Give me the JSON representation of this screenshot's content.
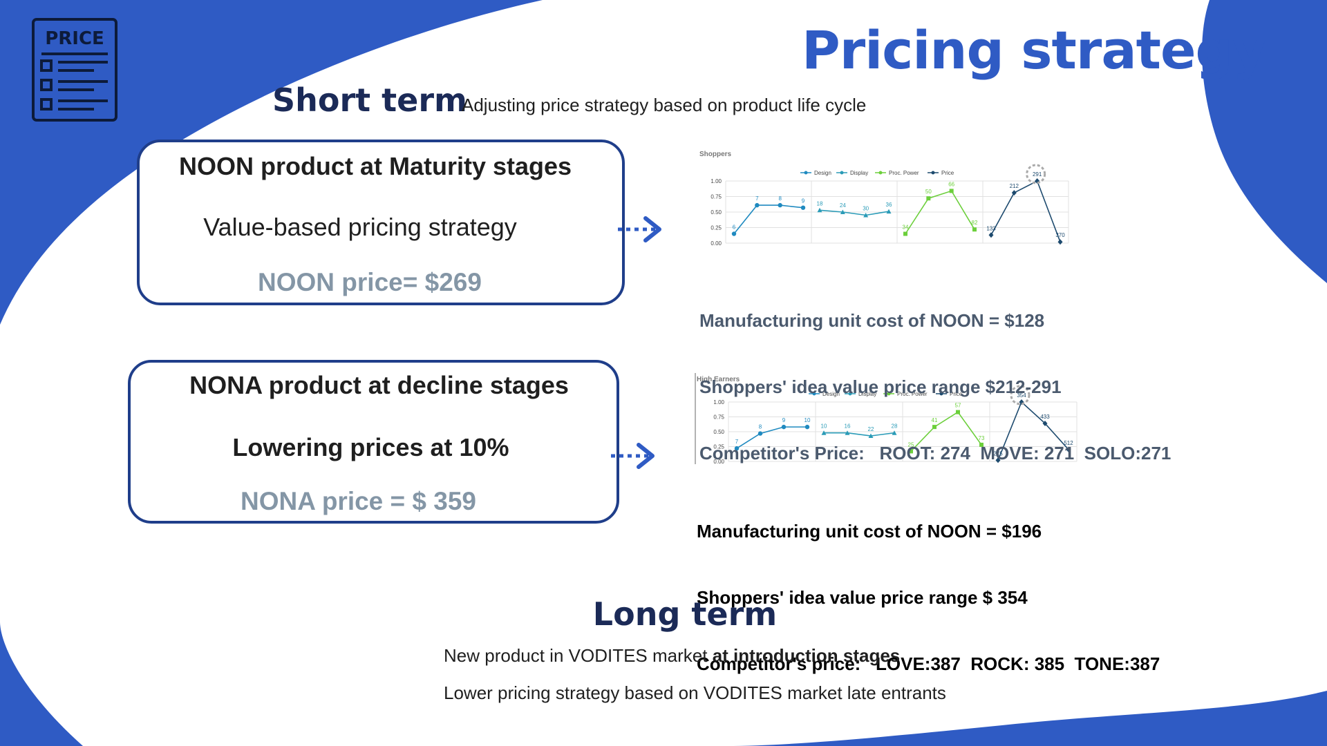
{
  "page": {
    "title": "Pricing strategy",
    "icon_label": "PRICE",
    "colors": {
      "brand_blue": "#2f5bc4",
      "navy": "#1b2a57",
      "card_border": "#1f3e8a",
      "price_gray": "#8496a6"
    }
  },
  "short_term": {
    "heading": "Short term",
    "subtitle": "Adjusting price strategy based on product life cycle"
  },
  "cards": [
    {
      "heading": "NOON product at Maturity stages",
      "strategy": "Value-based pricing strategy",
      "price": "NOON price= $269"
    },
    {
      "heading": "NONA product at decline stages",
      "strategy": "Lowering prices at 10%",
      "price": "NONA price = $ 359"
    }
  ],
  "info_blocks": [
    {
      "lines": [
        "Manufacturing unit cost of NOON = $128",
        "Shoppers' idea value price range $212-291",
        "Competitor's Price:   ROOT: 274  MOVE: 271  SOLO:271"
      ]
    },
    {
      "lines": [
        "Manufacturing unit cost of NOON = $196",
        "Shoppers' idea value price range $ 354",
        "Competitor's price:   LOVE:387  ROCK: 385  TONE:387"
      ]
    }
  ],
  "long_term": {
    "heading": "Long term",
    "line1_normal": "New product in VODITES market ",
    "line1_bold": "at introduction stages",
    "line2": "Lower pricing strategy based on VODITES market late entrants"
  },
  "chart_data": [
    {
      "type": "line",
      "title": "Shoppers",
      "ylim": [
        0,
        1
      ],
      "yticks": [
        "0.00",
        "0.25",
        "0.50",
        "0.75",
        "1.00"
      ],
      "grid": true,
      "legend": "top",
      "series": [
        {
          "name": "Design",
          "color": "#1f8ac0",
          "marker": "circle",
          "y": [
            0.15,
            0.61,
            0.61,
            0.57
          ],
          "labels": [
            "6",
            "7",
            "8",
            "9"
          ]
        },
        {
          "name": "Display",
          "color": "#2a9bb7",
          "marker": "triangle",
          "y": [
            0.53,
            0.5,
            0.45,
            0.51
          ],
          "labels": [
            "18",
            "24",
            "30",
            "36"
          ]
        },
        {
          "name": "Proc. Power",
          "color": "#6ccf3b",
          "marker": "square",
          "y": [
            0.15,
            0.72,
            0.84,
            0.22
          ],
          "labels": [
            "34",
            "50",
            "66",
            "82"
          ]
        },
        {
          "name": "Price",
          "color": "#1d4a6e",
          "marker": "diamond",
          "y": [
            0.13,
            0.81,
            1.0,
            0.02
          ],
          "labels": [
            "133",
            "212",
            "291",
            "370"
          ]
        }
      ]
    },
    {
      "type": "line",
      "title": "High Earners",
      "ylim": [
        0,
        1
      ],
      "yticks": [
        "0.00",
        "0.25",
        "0.50",
        "0.75",
        "1.00"
      ],
      "grid": true,
      "legend": "top",
      "series": [
        {
          "name": "Design",
          "color": "#1f8ac0",
          "marker": "circle",
          "y": [
            0.22,
            0.47,
            0.58,
            0.58
          ],
          "labels": [
            "7",
            "8",
            "9",
            "10"
          ]
        },
        {
          "name": "Display",
          "color": "#2a9bb7",
          "marker": "triangle",
          "y": [
            0.48,
            0.48,
            0.43,
            0.48
          ],
          "labels": [
            "10",
            "16",
            "22",
            "28"
          ]
        },
        {
          "name": "Proc. Power",
          "color": "#6ccf3b",
          "marker": "square",
          "y": [
            0.17,
            0.58,
            0.83,
            0.28
          ],
          "labels": [
            "25",
            "41",
            "57",
            "73"
          ]
        },
        {
          "name": "Price",
          "color": "#1d4a6e",
          "marker": "diamond",
          "y": [
            0.02,
            1.0,
            0.64,
            0.2
          ],
          "labels": [
            "275",
            "354",
            "433",
            "512"
          ]
        }
      ]
    }
  ]
}
